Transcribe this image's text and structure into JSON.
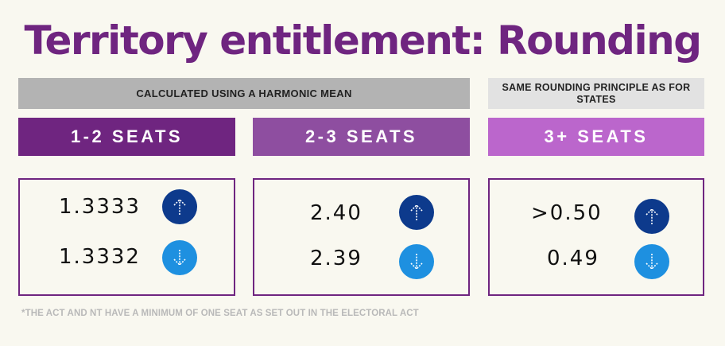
{
  "title": "Territory entitlement: Rounding",
  "banners": {
    "harmonic": "CALCULATED USING A HARMONIC MEAN",
    "same_rounding": "SAME ROUNDING PRINCIPLE AS FOR STATES"
  },
  "columns": [
    {
      "header": "1-2 SEATS",
      "up_value": "1.3333",
      "down_value": "1.3332"
    },
    {
      "header": "2-3 SEATS",
      "up_value": "2.40",
      "down_value": "2.39"
    },
    {
      "header": "3+ SEATS",
      "up_value": ">0.50",
      "down_value": "0.49"
    }
  ],
  "icons": {
    "up": "arrow-up-icon",
    "down": "arrow-down-icon"
  },
  "colors": {
    "title": "#6f2580",
    "header_1": "#6f2580",
    "header_2": "#8e4ea0",
    "header_3": "#bb66cc",
    "arrow_up": "#0d3a8c",
    "arrow_down": "#1e90e0"
  },
  "footnote": "*THE ACT AND NT HAVE A MINIMUM OF ONE SEAT AS SET OUT IN THE ELECTORAL ACT"
}
